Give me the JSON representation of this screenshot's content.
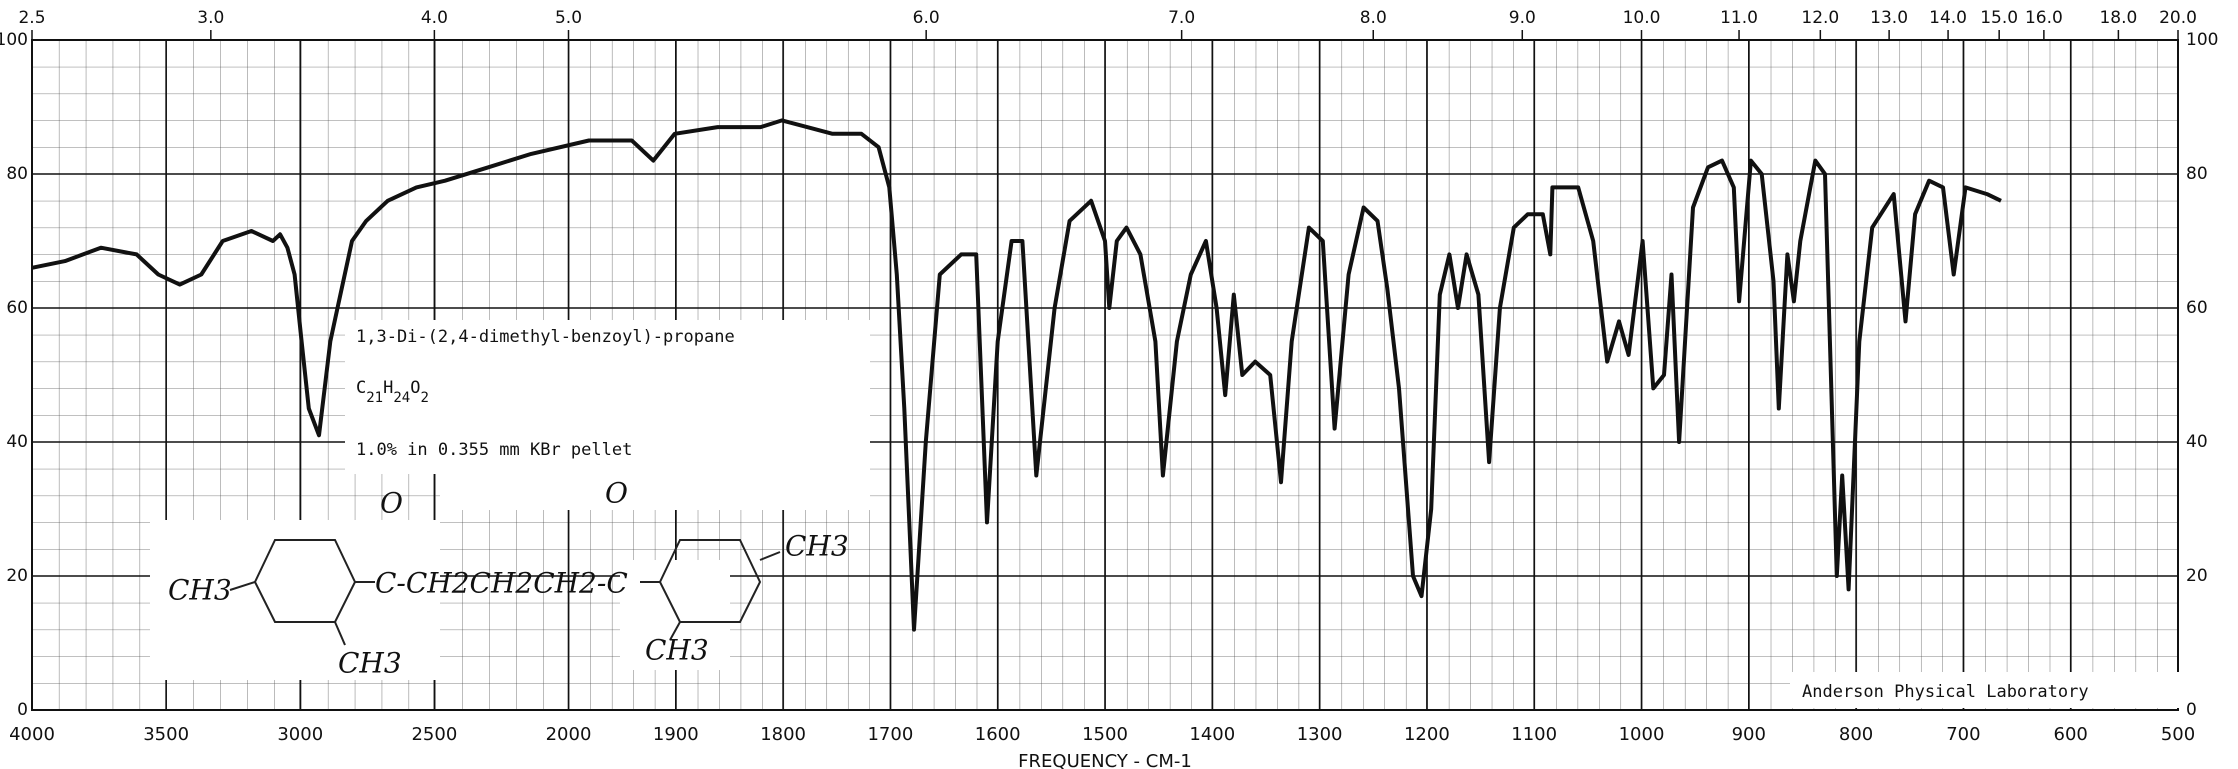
{
  "chart_data": {
    "type": "line",
    "x_label": "FREQUENCY - CM-1",
    "xlim": [
      4000,
      500
    ],
    "x_break": 2000,
    "x_break_ratio": 4,
    "xticks": [
      4000,
      3500,
      3000,
      2500,
      2000,
      1900,
      1800,
      1700,
      1600,
      1500,
      1400,
      1300,
      1200,
      1100,
      1000,
      900,
      800,
      700,
      600,
      500
    ],
    "top_xticks": [
      {
        "value": 2.5,
        "label": "2.5"
      },
      {
        "value": 3,
        "label": "3.0"
      },
      {
        "value": 4,
        "label": "4.0"
      },
      {
        "value": 5,
        "label": "5.0"
      },
      {
        "value": 6,
        "label": "6.0"
      },
      {
        "value": 7,
        "label": "7.0"
      },
      {
        "value": 8,
        "label": "8.0"
      },
      {
        "value": 9,
        "label": "9.0"
      },
      {
        "value": 10,
        "label": "10.0"
      },
      {
        "value": 11,
        "label": "11.0"
      },
      {
        "value": 12,
        "label": "12.0"
      },
      {
        "value": 13,
        "label": "13.0"
      },
      {
        "value": 14,
        "label": "14.0"
      },
      {
        "value": 15,
        "label": "15.0"
      },
      {
        "value": 16,
        "label": "16.0"
      },
      {
        "value": 18,
        "label": "18.0"
      },
      {
        "value": 20,
        "label": "20.0"
      }
    ],
    "ylim": [
      0,
      100
    ],
    "yticks": [
      0,
      20,
      40,
      60,
      80,
      100
    ],
    "grid": true,
    "x": [
      4000,
      3877,
      3743,
      3610,
      3529,
      3449,
      3369,
      3289,
      3182,
      3102,
      3075,
      3048,
      3021,
      2995,
      2968,
      2930,
      2888,
      2861,
      2807,
      2754,
      2674,
      2567,
      2460,
      2299,
      2139,
      1981,
      1941,
      1921,
      1901,
      1861,
      1821,
      1801,
      1754,
      1727,
      1711,
      1701,
      1694,
      1687,
      1678,
      1667,
      1654,
      1634,
      1620,
      1610,
      1600,
      1587,
      1577,
      1564,
      1547,
      1533,
      1513,
      1500,
      1496,
      1489,
      1480,
      1467,
      1453,
      1446,
      1433,
      1420,
      1406,
      1396,
      1388,
      1380,
      1372,
      1360,
      1346,
      1336,
      1326,
      1310,
      1297,
      1286,
      1273,
      1259,
      1246,
      1237,
      1226,
      1213,
      1205,
      1196,
      1188,
      1179,
      1171,
      1163,
      1152,
      1142,
      1132,
      1119,
      1106,
      1092,
      1085,
      1083,
      1059,
      1045,
      1032,
      1021,
      1012,
      999,
      989,
      979,
      972,
      965,
      952,
      938,
      925,
      914,
      909,
      898,
      888,
      877,
      872,
      864,
      858,
      852,
      838,
      829,
      818,
      813,
      807,
      797,
      785,
      765,
      754,
      745,
      732,
      719,
      709,
      698,
      678,
      665
    ],
    "series": [
      {
        "color": "#111111",
        "values": [
          66,
          67,
          69,
          68,
          65,
          63.5,
          65,
          70,
          71.5,
          70,
          71,
          69,
          65,
          55,
          45,
          41,
          55,
          60,
          70,
          73,
          76,
          78,
          79,
          81,
          83,
          85,
          85,
          82,
          86,
          87,
          87,
          88,
          86,
          86,
          84,
          78,
          65,
          45,
          12,
          40,
          65,
          68,
          68,
          28,
          55,
          70,
          70,
          35,
          60,
          73,
          76,
          70,
          60,
          70,
          72,
          68,
          55,
          35,
          55,
          65,
          70,
          60,
          47,
          62,
          50,
          52,
          50,
          34,
          55,
          72,
          70,
          42,
          65,
          75,
          73,
          63,
          48,
          20,
          17,
          30,
          62,
          68,
          60,
          68,
          62,
          37,
          60,
          72,
          74,
          74,
          68,
          78,
          78,
          70,
          52,
          58,
          53,
          70,
          48,
          50,
          65,
          40,
          75,
          81,
          82,
          78,
          61,
          82,
          80,
          64,
          45,
          68,
          61,
          70,
          82,
          80,
          20,
          35,
          18,
          55,
          72,
          77,
          58,
          74,
          79,
          78,
          65,
          78,
          77,
          76
        ]
      }
    ],
    "annotations": [
      "1,3-Di-(2,4-dimethyl-benzoyl)-propane",
      "1.0% in 0.355 mm  KBr pellet",
      "Anderson Physical Laboratory"
    ],
    "formula": [
      "C",
      "21",
      "H",
      "24",
      "O",
      "2"
    ],
    "structure_labels": [
      "CH3",
      "C-CH2CH2CH2-C",
      "O",
      "O",
      "CH3",
      "CH3",
      "CH3"
    ]
  }
}
